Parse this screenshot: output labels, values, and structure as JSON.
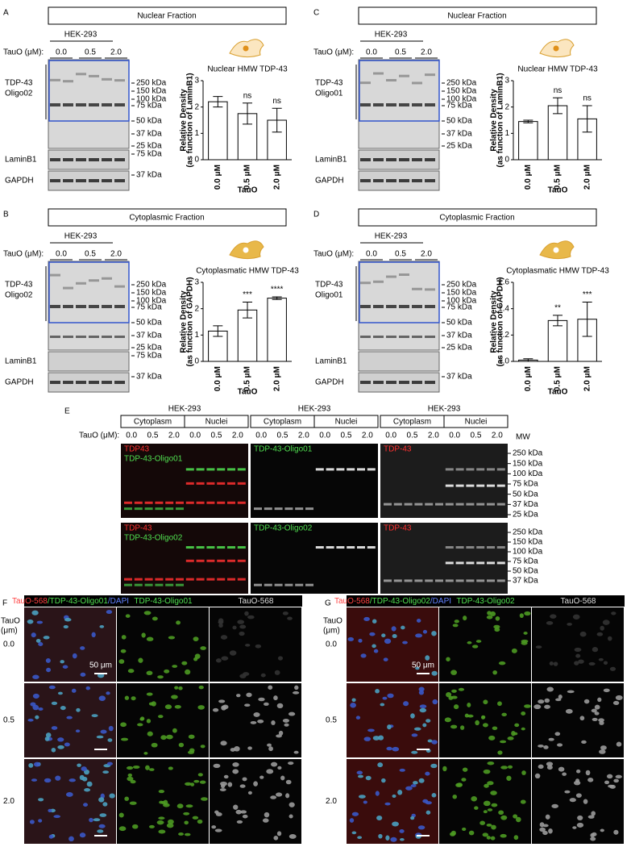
{
  "panels": [
    {
      "letter": "A",
      "fraction": "Nuclear Fraction",
      "cell_line": "HEK-293",
      "tauo_label": "TauO (μM):",
      "doses": [
        "0.0",
        "0.5",
        "2.0"
      ],
      "main_label": [
        "TDP-43",
        "Oligo02"
      ],
      "markers": [
        "250 kDa",
        "150 kDa",
        "100 kDa",
        "75 kDa",
        "50 kDa",
        "37 kDa",
        "25 kDa"
      ],
      "lower": [
        {
          "label": "LaminB1",
          "marker": "75 kDa"
        },
        {
          "label": "GAPDH",
          "marker": "37 kDa"
        }
      ]
    },
    {
      "letter": "B",
      "fraction": "Cytoplasmic Fraction",
      "cell_line": "HEK-293",
      "tauo_label": "TauO (μM):",
      "doses": [
        "0.0",
        "0.5",
        "2.0"
      ],
      "main_label": [
        "TDP-43",
        "Oligo02"
      ],
      "markers": [
        "250 kDa",
        "150 kDa",
        "100 kDa",
        "75 kDa",
        "50 kDa",
        "37 kDa",
        "25 kDa"
      ],
      "lower": [
        {
          "label": "LaminB1",
          "marker": "75 kDa"
        },
        {
          "label": "GAPDH",
          "marker": "37 kDa"
        }
      ]
    },
    {
      "letter": "C",
      "fraction": "Nuclear Fraction",
      "cell_line": "HEK-293",
      "tauo_label": "TauO (μM):",
      "doses": [
        "0.0",
        "0.5",
        "2.0"
      ],
      "main_label": [
        "TDP-43",
        "Oligo01"
      ],
      "markers": [
        "250 kDa",
        "150 kDa",
        "100 kDa",
        "75 kDa",
        "50 kDa",
        "37 kDa",
        "25 kDa"
      ],
      "lower": [
        {
          "label": "LaminB1"
        },
        {
          "label": "GAPDH"
        }
      ]
    },
    {
      "letter": "D",
      "fraction": "Cytoplasmic Fraction",
      "cell_line": "HEK-293",
      "tauo_label": "TauO (μM):",
      "doses": [
        "0.0",
        "0.5",
        "2.0"
      ],
      "main_label": [
        "TDP-43",
        "Oligo01"
      ],
      "markers": [
        "250 kDa",
        "150 kDa",
        "100 kDa",
        "75 kDa",
        "50 kDa",
        "37 kDa",
        "25 kDa"
      ],
      "lower": [
        {
          "label": "LaminB1"
        },
        {
          "label": "GAPDH",
          "marker": "37 kDa"
        }
      ]
    }
  ],
  "chart_data": [
    {
      "type": "bar",
      "title": "Nuclear HMW TDP-43",
      "y_label": [
        "Relative Density",
        "(as function of LaminB1)"
      ],
      "x_label": "TauO",
      "categories": [
        "0.0 μM",
        "0.5 μM",
        "2.0 μM"
      ],
      "values": [
        2.2,
        1.75,
        1.5
      ],
      "errors": [
        0.2,
        0.4,
        0.45
      ],
      "annotations": [
        null,
        "ns",
        "ns"
      ],
      "ylim": [
        0,
        3
      ],
      "yticks": [
        0,
        1,
        2,
        3
      ],
      "color": "#ffffff"
    },
    {
      "type": "bar",
      "title": "Cytoplasmatic HMW TDP-43",
      "y_label": [
        "Relative Density",
        "(as function of GAPDH)"
      ],
      "x_label": "TauO",
      "categories": [
        "0.0 μM",
        "0.5 μM",
        "2.0 μM"
      ],
      "values": [
        1.15,
        1.95,
        2.4
      ],
      "errors": [
        0.2,
        0.3,
        0.05
      ],
      "annotations": [
        null,
        "***",
        "****"
      ],
      "ylim": [
        0,
        3
      ],
      "yticks": [
        0,
        1,
        2,
        3
      ],
      "color": "#ffffff"
    },
    {
      "type": "bar",
      "title": "Nuclear HMW TDP-43",
      "y_label": [
        "Relative Density",
        "(as function of LaminB1)"
      ],
      "x_label": "TauO",
      "categories": [
        "0.0 μM",
        "0.5 μM",
        "2.0 μM"
      ],
      "values": [
        1.45,
        2.05,
        1.55
      ],
      "errors": [
        0.05,
        0.3,
        0.5
      ],
      "annotations": [
        null,
        "ns",
        "ns"
      ],
      "ylim": [
        0,
        3
      ],
      "yticks": [
        0,
        1,
        2,
        3
      ],
      "color": "#ffffff"
    },
    {
      "type": "bar",
      "title": "Cytoplasmatic HMW TDP-43",
      "y_label": [
        "Relative Density",
        "(as function of GAPDH)"
      ],
      "x_label": "TauO",
      "categories": [
        "0.0 μM",
        "0.5 μM",
        "2.0 μM"
      ],
      "values": [
        1.01,
        1.31,
        1.32
      ],
      "errors": [
        0.01,
        0.04,
        0.13
      ],
      "annotations": [
        null,
        "**",
        "***"
      ],
      "ylim": [
        1.0,
        1.6
      ],
      "yticks": [
        {
          "value": 1.0,
          "label": "1.0"
        },
        {
          "value": 1.2,
          "label": "1.2"
        },
        {
          "value": 1.4,
          "label": "1.4"
        },
        {
          "value": 1.6,
          "label": "1.6"
        }
      ],
      "color": "#ffffff"
    }
  ],
  "panel_e": {
    "letter": "E",
    "tauo_label": "TauO (μM):",
    "mw": "MW",
    "groups": [
      {
        "cell_line": "HEK-293",
        "fractions": [
          "Cytoplasm",
          "Nuclei"
        ],
        "doses": [
          "0.0",
          "0.5",
          "2.0",
          "0.0",
          "0.5",
          "2.0"
        ]
      },
      {
        "cell_line": "HEK-293",
        "fractions": [
          "Cytoplasm",
          "Nuclei"
        ],
        "doses": [
          "0.0",
          "0.5",
          "2.0",
          "0.0",
          "0.5",
          "2.0"
        ]
      },
      {
        "cell_line": "HEK-293",
        "fractions": [
          "Cytoplasm",
          "Nuclei"
        ],
        "doses": [
          "0.0",
          "0.5",
          "2.0",
          "0.0",
          "0.5",
          "2.0"
        ]
      }
    ],
    "rows": [
      {
        "images": [
          [
            {
              "text": "TDP43",
              "color": "#ff3030"
            },
            {
              "text": "TDP-43-Oligo01",
              "color": "#50e050"
            }
          ],
          [
            {
              "text": "TDP-43-Oligo01",
              "color": "#50e050"
            }
          ],
          [
            {
              "text": "TDP-43",
              "color": "#ff3030"
            }
          ]
        ],
        "markers": [
          "250 kDa",
          "150 kDa",
          "100 kDa",
          "75 kDa",
          "50 kDa",
          "37 kDa",
          "25 kDa"
        ]
      },
      {
        "images": [
          [
            {
              "text": "TDP-43",
              "color": "#ff3030"
            },
            {
              "text": "TDP-43-Oligo02",
              "color": "#50e050"
            }
          ],
          [
            {
              "text": "TDP-43-Oligo02",
              "color": "#50e050"
            }
          ],
          [
            {
              "text": "TDP-43",
              "color": "#ff3030"
            }
          ]
        ],
        "markers": [
          "250 kDa",
          "150 kDa",
          "100 kDa",
          "75 kDa",
          "50 kDa",
          "37 kDa"
        ]
      }
    ]
  },
  "micro": [
    {
      "letter": "F",
      "y_title": [
        "TauO",
        "(μm)"
      ],
      "headers": [
        [
          {
            "text": "TauO-568",
            "color": "#ff4040"
          },
          {
            "text": "/TDP-43-Oligo01",
            "color": "#50e050"
          },
          {
            "text": "/DAPI",
            "color": "#6080ff"
          }
        ],
        [
          {
            "text": "TDP-43-Oligo01",
            "color": "#50e050"
          }
        ],
        [
          {
            "text": "TauO-568",
            "color": "#dddddd"
          }
        ]
      ],
      "rows": [
        "0.0",
        "0.5",
        "2.0"
      ],
      "scale_bar": "50 μm"
    },
    {
      "letter": "G",
      "y_title": [
        "TauO",
        "(μm)"
      ],
      "headers": [
        [
          {
            "text": "TauO-568",
            "color": "#ff4040"
          },
          {
            "text": "/TDP-43-Oligo02",
            "color": "#50e050"
          },
          {
            "text": "/DAPI",
            "color": "#6080ff"
          }
        ],
        [
          {
            "text": "TDP-43-Oligo02",
            "color": "#50e050"
          }
        ],
        [
          {
            "text": "TauO-568",
            "color": "#dddddd"
          }
        ]
      ],
      "rows": [
        "0.0",
        "0.5",
        "2.0"
      ],
      "scale_bar": "50 μm"
    }
  ]
}
